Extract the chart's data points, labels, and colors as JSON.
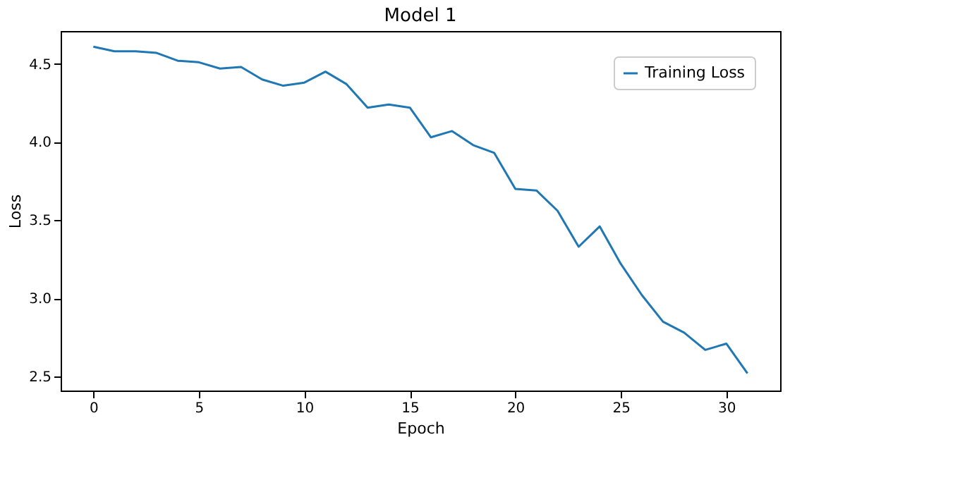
{
  "chart_data": {
    "type": "line",
    "title": "Model 1",
    "xlabel": "Epoch",
    "ylabel": "Loss",
    "x": [
      0,
      1,
      2,
      3,
      4,
      5,
      6,
      7,
      8,
      9,
      10,
      11,
      12,
      13,
      14,
      15,
      16,
      17,
      18,
      19,
      20,
      21,
      22,
      23,
      24,
      25,
      26,
      27,
      28,
      29,
      30,
      31
    ],
    "series": [
      {
        "name": "Training Loss",
        "color": "#1f77b4",
        "values": [
          4.61,
          4.58,
          4.58,
          4.57,
          4.52,
          4.51,
          4.47,
          4.48,
          4.4,
          4.36,
          4.38,
          4.45,
          4.37,
          4.22,
          4.24,
          4.22,
          4.03,
          4.07,
          3.98,
          3.93,
          3.7,
          3.69,
          3.56,
          3.33,
          3.46,
          3.22,
          3.02,
          2.85,
          2.78,
          2.67,
          2.71,
          2.52
        ]
      }
    ],
    "xlim": [
      -1.55,
      32.55
    ],
    "xticks": [
      0,
      5,
      10,
      15,
      20,
      25,
      30
    ],
    "ylim": [
      2.41,
      4.71
    ],
    "yticks": [
      {
        "value": 2.5,
        "label": "2.5"
      },
      {
        "value": 3.0,
        "label": "3.0"
      },
      {
        "value": 3.5,
        "label": "3.5"
      },
      {
        "value": 4.0,
        "label": "4.0"
      },
      {
        "value": 4.5,
        "label": "4.5"
      }
    ],
    "grid": false,
    "legend": "top right",
    "line_style": "solid",
    "marker": "none"
  }
}
